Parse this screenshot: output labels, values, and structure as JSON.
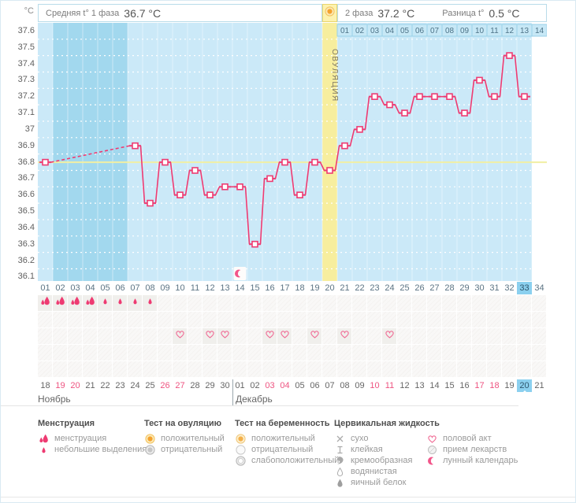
{
  "header": {
    "unit": "°C",
    "phase1_label": "Средняя t° 1 фаза",
    "phase1_value": "36.7 °C",
    "phase2_label": "2 фаза",
    "phase2_value": "37.2 °C",
    "diff_label": "Разница t°",
    "diff_value": "0.5 °C",
    "ovulation_label": "ОВУЛЯЦИЯ",
    "ovulation_icon": "ovu-positive"
  },
  "chart_data": {
    "type": "line",
    "title": "Basal body temperature cycle chart",
    "ylabel": "°C",
    "ylim": [
      36.1,
      37.6
    ],
    "grid": "dotted white at 0.05 steps",
    "y_ticks": [
      "37.6",
      "37.5",
      "37.4",
      "37.3",
      "37.2",
      "37.1",
      "37",
      "36.9",
      "36.8",
      "36.7",
      "36.6",
      "36.5",
      "36.4",
      "36.3",
      "36.2",
      "36.1"
    ],
    "day_labels": [
      "01",
      "02",
      "03",
      "04",
      "05",
      "06",
      "07",
      "08",
      "09",
      "10",
      "11",
      "12",
      "13",
      "14",
      "15",
      "16",
      "17",
      "18",
      "19",
      "20",
      "21",
      "22",
      "23",
      "24",
      "25",
      "26",
      "27",
      "28",
      "29",
      "30",
      "31",
      "32",
      "33",
      "34"
    ],
    "temps": [
      36.8,
      null,
      null,
      null,
      null,
      null,
      36.9,
      36.55,
      36.8,
      36.6,
      36.75,
      36.6,
      36.65,
      36.65,
      36.3,
      36.7,
      36.8,
      36.6,
      36.8,
      36.75,
      36.9,
      37.0,
      37.2,
      37.15,
      37.1,
      37.2,
      37.2,
      37.2,
      37.1,
      37.3,
      37.2,
      37.45,
      37.2,
      null
    ],
    "coverline": 36.8,
    "ovulation_day": 20,
    "today_day": 33,
    "future_days": [
      34
    ],
    "moon_day": 14,
    "phase2_day_labels": [
      "01",
      "02",
      "03",
      "04",
      "05",
      "06",
      "07",
      "08",
      "09",
      "10",
      "11",
      "12",
      "13",
      "14"
    ],
    "colors": {
      "line": "#ee3b72",
      "chart_bg": "#a2d8ee",
      "data_column_bg": "#cbe9f8",
      "ovulation_column_bg": "#f7ee9e",
      "coverline": "#f1efa3",
      "today_highlight": "#8bd0ef",
      "weekend_text": "#ee5380",
      "strip_cell_bg": "#c7e8f6",
      "strip_cell_border": "#98d1e8"
    }
  },
  "symbol_rows": [
    {
      "name": "menstruation",
      "cells": {
        "1": "drop-large",
        "2": "drop-large",
        "3": "drop-large",
        "4": "drop-large",
        "5": "drop-small",
        "6": "drop-small",
        "7": "drop-small",
        "8": "drop-small"
      }
    },
    {
      "name": "ovulation-test",
      "cells": {}
    },
    {
      "name": "intercourse",
      "cells": {
        "10": "heart",
        "12": "heart",
        "13": "heart",
        "16": "heart",
        "17": "heart",
        "19": "heart",
        "21": "heart",
        "24": "heart"
      }
    },
    {
      "name": "pregnancy-test",
      "cells": {}
    },
    {
      "name": "cervical-fluid",
      "cells": {}
    }
  ],
  "dates": {
    "november": {
      "label": "Ноябрь",
      "days": [
        "18",
        "19",
        "20",
        "21",
        "22",
        "23",
        "24",
        "25",
        "26",
        "27",
        "28",
        "29",
        "30"
      ],
      "weekend": [
        "19",
        "20",
        "26",
        "27"
      ]
    },
    "december": {
      "label": "Декабрь",
      "days": [
        "01",
        "02",
        "03",
        "04",
        "05",
        "06",
        "07",
        "08",
        "09",
        "10",
        "11",
        "12",
        "13",
        "14",
        "15",
        "16",
        "17",
        "18",
        "19",
        "20",
        "21"
      ],
      "weekend": [
        "03",
        "04",
        "10",
        "11",
        "17",
        "18"
      ],
      "today": "20"
    }
  },
  "legend": {
    "columns": [
      {
        "title": "Менструация",
        "items": [
          {
            "icon": "drop-large",
            "label": "менструация"
          },
          {
            "icon": "drop-small",
            "label": "небольшие выделения"
          }
        ]
      },
      {
        "title": "Тест на овуляцию",
        "items": [
          {
            "icon": "ovu-positive",
            "label": "положительный"
          },
          {
            "icon": "ovu-negative",
            "label": "отрицательный"
          }
        ]
      },
      {
        "title": "Тест на беременность",
        "items": [
          {
            "icon": "preg-positive",
            "label": "положительный"
          },
          {
            "icon": "preg-negative",
            "label": "отрицательный"
          },
          {
            "icon": "preg-weak",
            "label": "слабоположительный"
          }
        ]
      },
      {
        "title": "Цервикальная жидкость",
        "items": [
          {
            "icon": "dry",
            "label": "сухо"
          },
          {
            "icon": "sticky",
            "label": "клейкая"
          },
          {
            "icon": "creamy",
            "label": "кремообразная"
          },
          {
            "icon": "watery",
            "label": "водянистая"
          },
          {
            "icon": "eggwhite",
            "label": "яичный белок"
          }
        ]
      },
      {
        "title": "",
        "items": [
          {
            "icon": "heart",
            "label": "половой акт"
          },
          {
            "icon": "pills",
            "label": "прием лекарств"
          },
          {
            "icon": "moon",
            "label": "лунный календарь"
          }
        ]
      }
    ]
  }
}
